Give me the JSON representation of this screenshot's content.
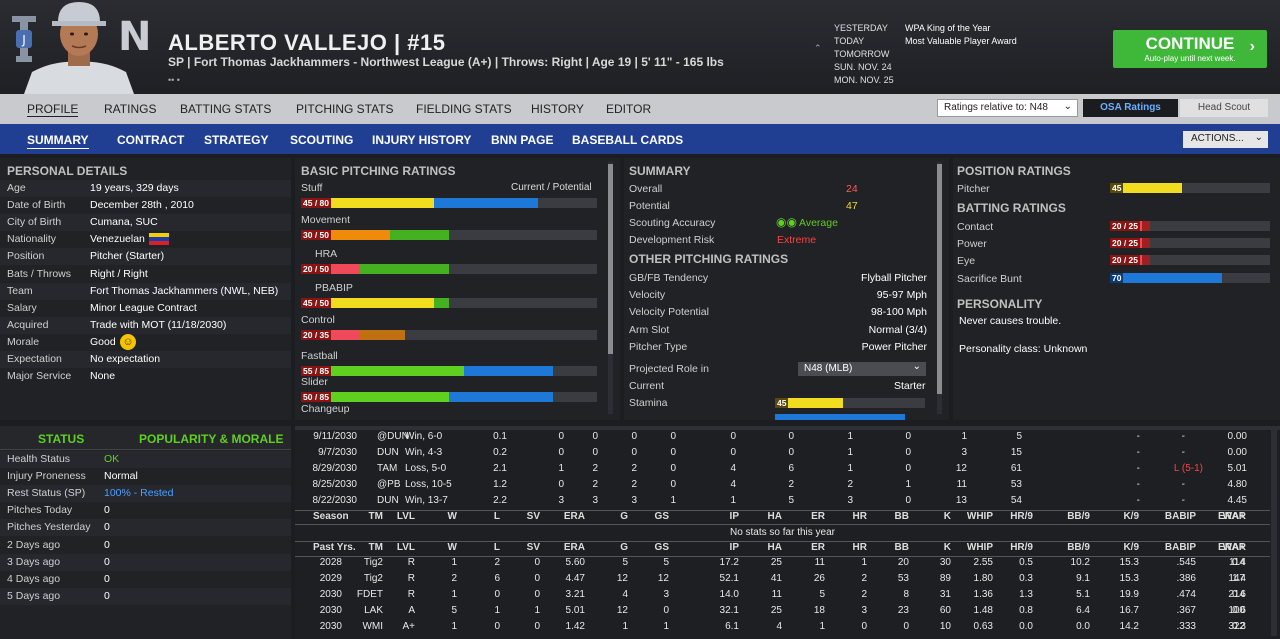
{
  "header": {
    "name": "ALBERTO VALLEJO  |  #15",
    "subtitle": "SP | Fort Thomas Jackhammers - Northwest League (A+)  |  Throws: Right  |  Age 19  |  5' 11\" - 165 lbs",
    "dots": "•• •",
    "dates": [
      "YESTERDAY",
      "TODAY",
      "TOMORROW",
      "SUN. NOV. 24",
      "MON. NOV. 25"
    ],
    "awards": [
      "WPA King of the Year",
      "Most Valuable Player Award"
    ],
    "continue_label": "CONTINUE",
    "continue_sub": "Auto-play until next week."
  },
  "tabs1": [
    "PROFILE",
    "RATINGS",
    "BATTING STATS",
    "PITCHING STATS",
    "FIELDING STATS",
    "HISTORY",
    "EDITOR"
  ],
  "ratings_relative": "Ratings relative to: N48",
  "osa_ratings": "OSA Ratings",
  "head_scout": "Head Scout",
  "tabs2": [
    "SUMMARY",
    "CONTRACT",
    "STRATEGY",
    "SCOUTING",
    "INJURY HISTORY",
    "BNN PAGE",
    "BASEBALL CARDS"
  ],
  "actions": "ACTIONS...",
  "personal": {
    "title": "PERSONAL DETAILS",
    "rows": [
      [
        "Age",
        "19 years, 329 days"
      ],
      [
        "Date of Birth",
        "December 28th , 2010"
      ],
      [
        "City of Birth",
        "Cumana, SUC"
      ],
      [
        "Nationality",
        "Venezuelan"
      ],
      [
        "Position",
        "Pitcher (Starter)"
      ],
      [
        "Bats / Throws",
        "Right / Right"
      ],
      [
        "Team",
        "Fort Thomas Jackhammers (NWL, NEB)"
      ],
      [
        "Salary",
        "Minor League Contract"
      ],
      [
        "Acquired",
        "Trade with MOT (11/18/2030)"
      ],
      [
        "Morale",
        "Good"
      ],
      [
        "Expectation",
        "No expectation"
      ],
      [
        "Major Service",
        "None"
      ]
    ]
  },
  "status": {
    "tab_status": "STATUS",
    "tab_popularity": "POPULARITY & MORALE",
    "rows": [
      [
        "Health Status",
        "OK"
      ],
      [
        "Injury Proneness",
        "Normal"
      ],
      [
        "Rest Status (SP)",
        "100% - Rested"
      ],
      [
        "Pitches Today",
        "0"
      ],
      [
        "Pitches Yesterday",
        "0"
      ],
      [
        "2 Days ago",
        "0"
      ],
      [
        "3 Days ago",
        "0"
      ],
      [
        "4 Days ago",
        "0"
      ],
      [
        "5 Days ago",
        "0"
      ]
    ]
  },
  "basic_pitching": {
    "title": "BASIC PITCHING RATINGS",
    "cur_pot_label": "Current / Potential",
    "items": [
      {
        "label": "Stuff",
        "text": "45 / 80",
        "cur": 45,
        "pot": 80,
        "color": "#f2dc20",
        "indent": false
      },
      {
        "label": "Movement",
        "text": "30 / 50",
        "cur": 30,
        "pot": 50,
        "color": "#f08a0a",
        "indent": false
      },
      {
        "label": "HRA",
        "text": "20 / 50",
        "cur": 20,
        "pot": 50,
        "color": "#f04a5a",
        "indent": true
      },
      {
        "label": "PBABIP",
        "text": "45 / 50",
        "cur": 45,
        "pot": 50,
        "color": "#f2dc20",
        "indent": true
      },
      {
        "label": "Control",
        "text": "20 / 35",
        "cur": 20,
        "pot": 35,
        "color": "#f04a5a",
        "indent": false
      },
      {
        "label": "Fastball",
        "text": "55 / 85",
        "cur": 55,
        "pot": 85,
        "color": "#5fd020",
        "indent": false
      },
      {
        "label": "Slider",
        "text": "50 / 85",
        "cur": 50,
        "pot": 85,
        "color": "#5fd020",
        "indent": false
      },
      {
        "label": "Changeup",
        "text": "",
        "cur": 0,
        "pot": 0,
        "color": "#5fd020",
        "indent": false
      }
    ]
  },
  "summary": {
    "title": "SUMMARY",
    "overall_label": "Overall",
    "overall": "24",
    "potential_label": "Potential",
    "potential": "47",
    "accuracy_label": "Scouting Accuracy",
    "accuracy": "Average",
    "risk_label": "Development Risk",
    "risk": "Extreme",
    "other_title": "OTHER PITCHING RATINGS",
    "other": [
      [
        "GB/FB Tendency",
        "Flyball Pitcher"
      ],
      [
        "Velocity",
        "95-97 Mph"
      ],
      [
        "Velocity Potential",
        "98-100 Mph"
      ],
      [
        "Arm Slot",
        "Normal (3/4)"
      ],
      [
        "Pitcher Type",
        "Power Pitcher"
      ]
    ],
    "proj_label": "Projected Role in",
    "proj_value": "N48 (MLB)",
    "current_label": "Current",
    "current_value": "Starter",
    "stamina_label": "Stamina",
    "stamina_value": "45",
    "stamina": 45
  },
  "position": {
    "title": "POSITION RATINGS",
    "pitcher_label": "Pitcher",
    "pitcher_value": "45",
    "pitcher": 45,
    "batting_title": "BATTING RATINGS",
    "batting": [
      {
        "label": "Contact",
        "text": "20 / 25",
        "cur": 20,
        "pot": 25
      },
      {
        "label": "Power",
        "text": "20 / 25",
        "cur": 20,
        "pot": 25
      },
      {
        "label": "Eye",
        "text": "20 / 25",
        "cur": 20,
        "pot": 25
      },
      {
        "label": "Sacrifice Bunt",
        "text": "70",
        "cur": 70,
        "pot": 70
      }
    ],
    "personality_title": "PERSONALITY",
    "personality": "Never causes trouble.",
    "personality_class": "Personality class: Unknown"
  },
  "games": [
    [
      "9/11/2030",
      "@DUN",
      "Win, 6-0",
      "0.1",
      "0",
      "0",
      "0",
      "0",
      "0",
      "0",
      "1",
      "0",
      "1",
      "5",
      "-",
      "-",
      "0.00"
    ],
    [
      "9/7/2030",
      "DUN",
      "Win, 4-3",
      "0.2",
      "0",
      "0",
      "0",
      "0",
      "0",
      "0",
      "1",
      "0",
      "3",
      "15",
      "-",
      "-",
      "0.00"
    ],
    [
      "8/29/2030",
      "TAM",
      "Loss, 5-0",
      "2.1",
      "1",
      "2",
      "2",
      "0",
      "4",
      "6",
      "1",
      "0",
      "12",
      "61",
      "-",
      "L (5-1)",
      "5.01"
    ],
    [
      "8/25/2030",
      "@PB",
      "Loss, 10-5",
      "1.2",
      "0",
      "2",
      "2",
      "0",
      "4",
      "2",
      "2",
      "1",
      "11",
      "53",
      "-",
      "-",
      "4.80"
    ],
    [
      "8/22/2030",
      "DUN",
      "Win, 13-7",
      "2.2",
      "3",
      "3",
      "3",
      "1",
      "1",
      "5",
      "3",
      "0",
      "13",
      "54",
      "-",
      "-",
      "4.45"
    ]
  ],
  "season_header": [
    "Season",
    "TM",
    "LVL",
    "W",
    "L",
    "SV",
    "ERA",
    "G",
    "GS",
    "IP",
    "HA",
    "ER",
    "HR",
    "BB",
    "K",
    "WHIP",
    "HR/9",
    "BB/9",
    "K/9",
    "BABIP",
    "ERA+",
    "WAR"
  ],
  "no_stats": "No stats so far this year",
  "past_header": [
    "Past Yrs.",
    "TM",
    "LVL",
    "W",
    "L",
    "SV",
    "ERA",
    "G",
    "GS",
    "IP",
    "HA",
    "ER",
    "HR",
    "BB",
    "K",
    "WHIP",
    "HR/9",
    "BB/9",
    "K/9",
    "BABIP",
    "ERA+",
    "WAR"
  ],
  "past": [
    [
      "2028",
      "Tig2",
      "R",
      "1",
      "2",
      "0",
      "5.60",
      "5",
      "5",
      "17.2",
      "25",
      "11",
      "1",
      "20",
      "30",
      "2.55",
      "0.5",
      "10.2",
      "15.3",
      ".545",
      "114",
      "0.4"
    ],
    [
      "2029",
      "Tig2",
      "R",
      "2",
      "6",
      "0",
      "4.47",
      "12",
      "12",
      "52.1",
      "41",
      "26",
      "2",
      "53",
      "89",
      "1.80",
      "0.3",
      "9.1",
      "15.3",
      ".386",
      "147",
      "1.4"
    ],
    [
      "2030",
      "FDET",
      "R",
      "1",
      "0",
      "0",
      "3.21",
      "4",
      "3",
      "14.0",
      "11",
      "5",
      "2",
      "8",
      "31",
      "1.36",
      "1.3",
      "5.1",
      "19.9",
      ".474",
      "214",
      "0.6"
    ],
    [
      "2030",
      "LAK",
      "A",
      "5",
      "1",
      "1",
      "5.01",
      "12",
      "0",
      "32.1",
      "25",
      "18",
      "3",
      "23",
      "60",
      "1.48",
      "0.8",
      "6.4",
      "16.7",
      ".367",
      "100",
      "0.6"
    ],
    [
      "2030",
      "WMI",
      "A+",
      "1",
      "0",
      "0",
      "1.42",
      "1",
      "1",
      "6.1",
      "4",
      "1",
      "0",
      "0",
      "10",
      "0.63",
      "0.0",
      "0.0",
      "14.2",
      ".333",
      "322",
      "0.3"
    ]
  ]
}
